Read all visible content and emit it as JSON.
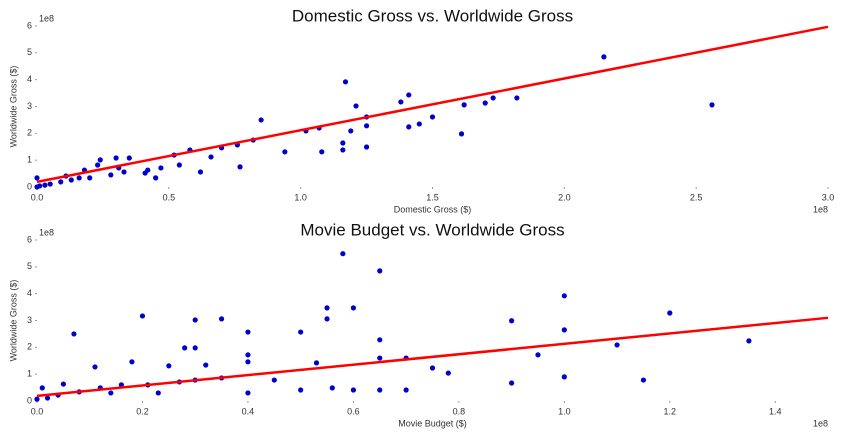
{
  "chart_data": [
    {
      "type": "scatter",
      "title": "Domestic Gross vs. Worldwide Gross",
      "xlabel": "Domestic Gross ($)",
      "ylabel": "Worldwide Gross ($)",
      "x_offset_label": "1e8",
      "y_offset_label": "1e8",
      "color": "#0000cc",
      "x": [
        1.17,
        2.15,
        2.56,
        1.21,
        1.41,
        1.38,
        0.85,
        1.73,
        1.82,
        1.7,
        1.61,
        1.62,
        1.5,
        1.45,
        1.41,
        1.25,
        1.25,
        1.19,
        1.07,
        1.02,
        1.16,
        1.16,
        1.25,
        1.08,
        0.94,
        0.82,
        0.76,
        0.7,
        0.66,
        0.58,
        0.52,
        0.54,
        0.47,
        0.42,
        0.35,
        0.3,
        0.24,
        0.23,
        0.18,
        0.16,
        0.13,
        0.09,
        0.05,
        0.03,
        0.01,
        0,
        0,
        0.28,
        0.33,
        0.41,
        0.45,
        0.62,
        0.77,
        0.11,
        0.2,
        0.31
      ],
      "values": [
        3.92,
        4.85,
        3.06,
        3.02,
        3.43,
        3.17,
        2.5,
        3.32,
        3.32,
        3.13,
        1.98,
        3.06,
        2.61,
        2.35,
        2.24,
        2.61,
        2.28,
        2.09,
        2.2,
        2.09,
        1.64,
        1.38,
        1.49,
        1.31,
        1.31,
        1.75,
        1.57,
        1.46,
        1.12,
        1.38,
        1.19,
        0.82,
        0.71,
        0.63,
        1.08,
        1.08,
        1.01,
        0.82,
        0.63,
        0.34,
        0.26,
        0.19,
        0.11,
        0.07,
        0.04,
        0,
        0.34,
        0.45,
        0.56,
        0.52,
        0.34,
        0.56,
        0.75,
        0.41,
        0.34,
        0.71
      ],
      "fit_line": {
        "color": "#ff0000",
        "x": [
          0,
          3.0
        ],
        "values": [
          0.19,
          5.97
        ]
      },
      "xlim": [
        0,
        3.0
      ],
      "ylim": [
        0,
        6
      ],
      "xticks": [
        {
          "value": 0,
          "label": "0.0"
        },
        0.5,
        {
          "value": 1,
          "label": "1.0"
        },
        1.5,
        {
          "value": 2,
          "label": "2.0"
        },
        2.5,
        {
          "value": 3,
          "label": "3.0"
        }
      ],
      "yticks": [
        0,
        1,
        2,
        3,
        4,
        5,
        6
      ],
      "grid": false
    },
    {
      "type": "scatter",
      "title": "Movie Budget vs. Worldwide Gross",
      "xlabel": "Movie Budget ($)",
      "ylabel": "Worldwide Gross ($)",
      "x_offset_label": "1e8",
      "y_offset_label": "1e8",
      "color": "#0000cc",
      "x": [
        0.58,
        0.65,
        1.0,
        1.2,
        0.6,
        0.55,
        0.55,
        0.2,
        0.3,
        0.35,
        0.07,
        0.5,
        0.4,
        0.65,
        0.9,
        1.0,
        1.1,
        1.35,
        0.3,
        0.28,
        0.4,
        0.4,
        0.53,
        0.65,
        0.95,
        0.7,
        0.11,
        0.18,
        0.25,
        0.32,
        0.75,
        0.78,
        1.0,
        1.15,
        0.9,
        0.56,
        0.6,
        0.65,
        0.7,
        0.5,
        0.45,
        0.35,
        0.27,
        0.21,
        0.16,
        0.12,
        0.08,
        0.04,
        0.02,
        0,
        0.01,
        0.05,
        0.14,
        0.23,
        0.4,
        0.3
      ],
      "values": [
        5.49,
        4.85,
        3.92,
        3.28,
        3.47,
        3.47,
        3.06,
        3.17,
        3.02,
        3.06,
        2.5,
        2.57,
        2.57,
        2.28,
        2.99,
        2.65,
        2.09,
        2.24,
        1.98,
        1.98,
        1.72,
        1.46,
        1.42,
        1.6,
        1.72,
        1.6,
        1.27,
        1.46,
        1.31,
        1.34,
        1.23,
        1.04,
        0.9,
        0.78,
        0.67,
        0.49,
        0.41,
        0.41,
        0.41,
        0.41,
        0.78,
        0.86,
        0.71,
        0.6,
        0.6,
        0.49,
        0.34,
        0.22,
        0.11,
        0.07,
        0.49,
        0.63,
        0.3,
        0.3,
        0.3,
        0.78
      ],
      "fit_line": {
        "color": "#ff0000",
        "x": [
          0,
          1.5
        ],
        "values": [
          0.19,
          3.1
        ]
      },
      "xlim": [
        0,
        1.5
      ],
      "ylim": [
        0,
        6
      ],
      "xticks": [
        {
          "value": 0,
          "label": "0.0"
        },
        0.2,
        0.4,
        0.6,
        0.8,
        {
          "value": 1,
          "label": "1.0"
        },
        1.2,
        1.4
      ],
      "yticks": [
        0,
        1,
        2,
        3,
        4,
        5,
        6
      ],
      "grid": false
    }
  ]
}
